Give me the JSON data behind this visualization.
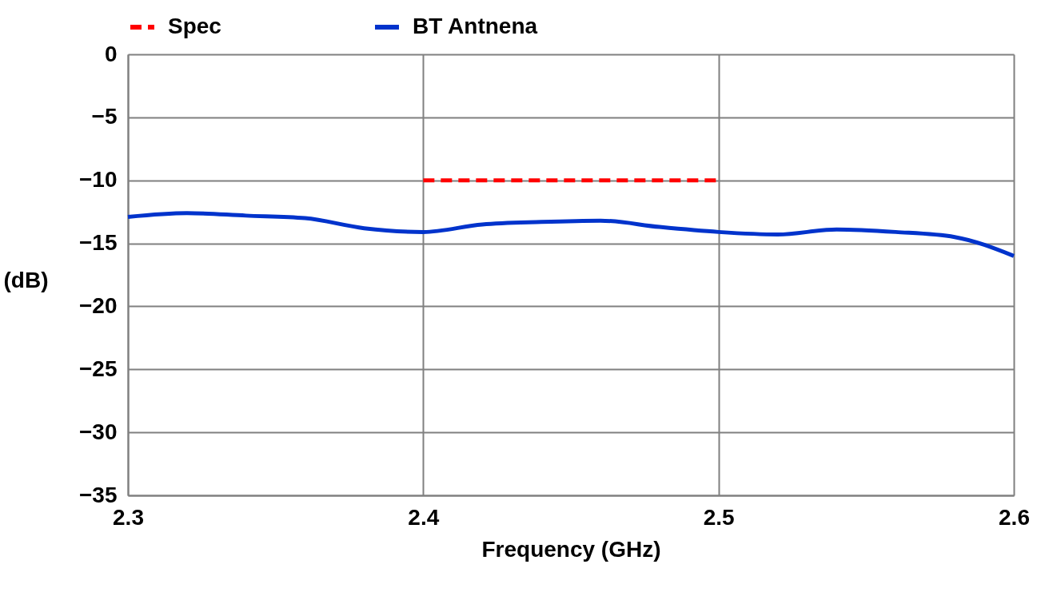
{
  "chart_data": {
    "type": "line",
    "xlabel": "Frequency (GHz)",
    "ylabel": "(dB)",
    "xlim": [
      2.3,
      2.6
    ],
    "xticks": [
      2.3,
      2.4,
      2.5,
      2.6
    ],
    "ylim": [
      -35,
      0
    ],
    "yticks": [
      -35,
      -30,
      -25,
      -20,
      -15,
      -10,
      -5,
      0
    ],
    "grid": true,
    "legend": "top",
    "marker": "none",
    "series": [
      {
        "name": "Spec",
        "color": "#ff0000",
        "line_style": "dashed",
        "x": [
          2.4,
          2.5
        ],
        "values": [
          -10,
          -10
        ]
      },
      {
        "name": "BT Antnena",
        "color": "#0033cc",
        "line_style": "solid",
        "x": [
          2.3,
          2.32,
          2.34,
          2.36,
          2.38,
          2.4,
          2.42,
          2.44,
          2.46,
          2.48,
          2.5,
          2.52,
          2.54,
          2.56,
          2.58,
          2.6
        ],
        "values": [
          -12.9,
          -12.6,
          -12.8,
          -13.0,
          -13.8,
          -14.1,
          -13.5,
          -13.3,
          -13.2,
          -13.7,
          -14.1,
          -14.3,
          -13.9,
          -14.1,
          -14.5,
          -16.0
        ]
      }
    ]
  }
}
